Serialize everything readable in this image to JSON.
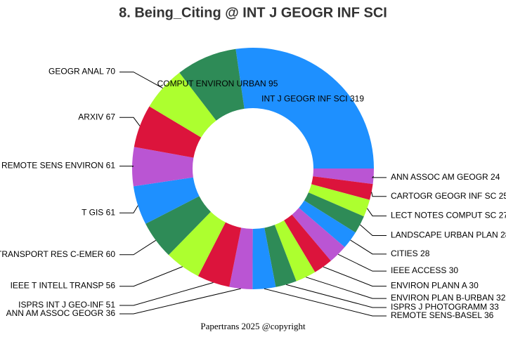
{
  "chart_data": {
    "type": "donut",
    "title": "8. Being_Citing @ INT J GEOGR INF SCI",
    "footer": "Papertrans 2025 @copyright",
    "categories": [
      "INT J GEOGR INF SCI",
      "ANN ASSOC AM GEOGR",
      "CARTOGR GEOGR INF SC",
      "LECT NOTES COMPUT SC",
      "LANDSCAPE URBAN PLAN",
      "CITIES",
      "IEEE ACCESS",
      "ENVIRON PLANN A",
      "ENVIRON PLAN B-URBAN",
      "ISPRS J PHOTOGRAMM",
      "REMOTE SENS-BASEL",
      "ANN AM ASSOC GEOGR",
      "ISPRS INT J GEO-INF",
      "IEEE T INTELL TRANSP",
      "TRANSPORT RES C-EMER",
      "T GIS",
      "REMOTE SENS ENVIRON",
      "ARXIV",
      "GEOGR ANAL",
      "COMPUT ENVIRON URBAN"
    ],
    "values": [
      319,
      24,
      25,
      27,
      28,
      28,
      30,
      30,
      32,
      33,
      36,
      36,
      51,
      56,
      60,
      61,
      61,
      67,
      70,
      95
    ],
    "colors": [
      "#1e90ff",
      "#ba55d3",
      "#dc143c",
      "#adff2f",
      "#2e8b57"
    ]
  }
}
